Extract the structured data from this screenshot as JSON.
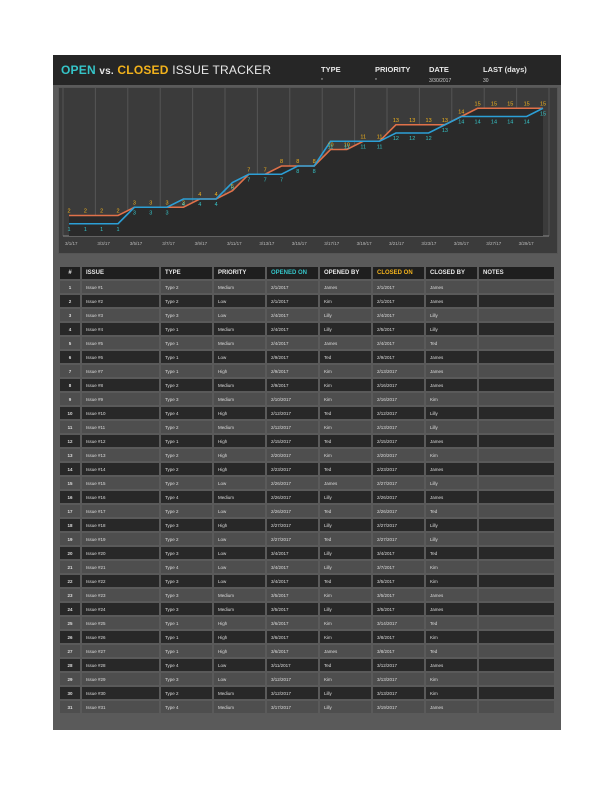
{
  "header": {
    "title_open": "OPEN",
    "title_vs": "vs.",
    "title_closed": "CLOSED",
    "title_rest": "ISSUE TRACKER",
    "filters": [
      {
        "label": "TYPE",
        "value": "*"
      },
      {
        "label": "PRIORITY",
        "value": "*"
      },
      {
        "label": "DATE",
        "value": "3/30/2017"
      },
      {
        "label": "LAST (days)",
        "value": "30"
      }
    ]
  },
  "colors": {
    "open_accent": "#35c4c8",
    "closed_accent": "#f2b21c",
    "open_line": "#e0714a",
    "closed_line": "#2c9fd6"
  },
  "chart_data": {
    "type": "line",
    "title": "",
    "xlabel": "",
    "ylabel": "",
    "grid": true,
    "x_tick_labels": [
      "3/1/17",
      "3/3/17",
      "3/5/17",
      "3/7/17",
      "3/9/17",
      "3/11/17",
      "3/13/17",
      "3/15/17",
      "3/17/17",
      "3/19/17",
      "3/21/17",
      "3/23/17",
      "3/25/17",
      "3/27/17",
      "3/29/17"
    ],
    "series": [
      {
        "name": "Opened",
        "color": "#e0714a",
        "label_color": "#f2b21c",
        "values": [
          2,
          2,
          2,
          2,
          3,
          3,
          3,
          3,
          4,
          4,
          5,
          7,
          7,
          8,
          8,
          8,
          10,
          10,
          11,
          11,
          13,
          13,
          13,
          13,
          14,
          15,
          15,
          15,
          15,
          15
        ]
      },
      {
        "name": "Closed",
        "color": "#2c9fd6",
        "label_color": "#35c4c8",
        "values": [
          1,
          1,
          1,
          1,
          3,
          3,
          3,
          4,
          4,
          4,
          6,
          7,
          7,
          7,
          8,
          8,
          11,
          11,
          11,
          11,
          12,
          12,
          12,
          13,
          14,
          14,
          14,
          14,
          14,
          15
        ]
      }
    ],
    "ylim": [
      0,
      16
    ]
  },
  "table": {
    "headers": [
      "#",
      "ISSUE",
      "TYPE",
      "PRIORITY",
      "OPENED ON",
      "OPENED BY",
      "CLOSED ON",
      "CLOSED BY",
      "NOTES"
    ],
    "rows": [
      [
        "1",
        "Issue #1",
        "Type 2",
        "Medium",
        "2/1/2017",
        "James",
        "2/1/2017",
        "James",
        ""
      ],
      [
        "2",
        "Issue #2",
        "Type 2",
        "Low",
        "2/1/2017",
        "Kim",
        "2/1/2017",
        "James",
        ""
      ],
      [
        "3",
        "Issue #3",
        "Type 3",
        "Low",
        "2/4/2017",
        "Lilly",
        "2/4/2017",
        "Lilly",
        ""
      ],
      [
        "4",
        "Issue #4",
        "Type 1",
        "Medium",
        "2/4/2017",
        "Lilly",
        "2/5/2017",
        "Lilly",
        ""
      ],
      [
        "5",
        "Issue #5",
        "Type 1",
        "Medium",
        "2/4/2017",
        "James",
        "2/4/2017",
        "Ted",
        ""
      ],
      [
        "6",
        "Issue #6",
        "Type 1",
        "Low",
        "2/9/2017",
        "Ted",
        "2/9/2017",
        "James",
        ""
      ],
      [
        "7",
        "Issue #7",
        "Type 1",
        "High",
        "2/9/2017",
        "Kim",
        "2/13/2017",
        "James",
        ""
      ],
      [
        "8",
        "Issue #8",
        "Type 2",
        "Medium",
        "2/9/2017",
        "Kim",
        "2/16/2017",
        "James",
        ""
      ],
      [
        "9",
        "Issue #9",
        "Type 3",
        "Medium",
        "2/10/2017",
        "Kim",
        "2/16/2017",
        "Kim",
        ""
      ],
      [
        "10",
        "Issue #10",
        "Type 4",
        "High",
        "2/12/2017",
        "Ted",
        "2/12/2017",
        "Lilly",
        ""
      ],
      [
        "11",
        "Issue #11",
        "Type 2",
        "Medium",
        "2/12/2017",
        "Kim",
        "2/13/2017",
        "Lilly",
        ""
      ],
      [
        "12",
        "Issue #12",
        "Type 1",
        "High",
        "2/15/2017",
        "Ted",
        "2/15/2017",
        "James",
        ""
      ],
      [
        "13",
        "Issue #13",
        "Type 2",
        "High",
        "2/20/2017",
        "Kim",
        "2/20/2017",
        "Kim",
        ""
      ],
      [
        "14",
        "Issue #14",
        "Type 2",
        "High",
        "2/23/2017",
        "Ted",
        "2/23/2017",
        "James",
        ""
      ],
      [
        "15",
        "Issue #15",
        "Type 2",
        "Low",
        "2/26/2017",
        "James",
        "2/27/2017",
        "Lilly",
        ""
      ],
      [
        "16",
        "Issue #16",
        "Type 4",
        "Medium",
        "2/26/2017",
        "Lilly",
        "2/26/2017",
        "James",
        ""
      ],
      [
        "17",
        "Issue #17",
        "Type 2",
        "Low",
        "2/26/2017",
        "Ted",
        "2/26/2017",
        "Ted",
        ""
      ],
      [
        "18",
        "Issue #18",
        "Type 3",
        "High",
        "2/27/2017",
        "Lilly",
        "2/27/2017",
        "Lilly",
        ""
      ],
      [
        "19",
        "Issue #19",
        "Type 2",
        "Low",
        "2/27/2017",
        "Ted",
        "2/27/2017",
        "Lilly",
        ""
      ],
      [
        "20",
        "Issue #20",
        "Type 3",
        "Low",
        "3/4/2017",
        "Lilly",
        "3/4/2017",
        "Ted",
        ""
      ],
      [
        "21",
        "Issue #21",
        "Type 4",
        "Low",
        "3/4/2017",
        "Lilly",
        "3/7/2017",
        "Kim",
        ""
      ],
      [
        "22",
        "Issue #22",
        "Type 3",
        "Low",
        "3/4/2017",
        "Ted",
        "3/5/2017",
        "Kim",
        ""
      ],
      [
        "23",
        "Issue #23",
        "Type 3",
        "Medium",
        "3/5/2017",
        "Kim",
        "3/5/2017",
        "James",
        ""
      ],
      [
        "24",
        "Issue #24",
        "Type 3",
        "Medium",
        "3/5/2017",
        "Lilly",
        "3/5/2017",
        "James",
        ""
      ],
      [
        "25",
        "Issue #25",
        "Type 1",
        "High",
        "3/6/2017",
        "Kim",
        "3/14/2017",
        "Ted",
        ""
      ],
      [
        "26",
        "Issue #26",
        "Type 1",
        "High",
        "3/6/2017",
        "Kim",
        "3/8/2017",
        "Kim",
        ""
      ],
      [
        "27",
        "Issue #27",
        "Type 1",
        "High",
        "3/6/2017",
        "James",
        "3/8/2017",
        "Ted",
        ""
      ],
      [
        "28",
        "Issue #28",
        "Type 4",
        "Low",
        "3/11/2017",
        "Ted",
        "3/12/2017",
        "James",
        ""
      ],
      [
        "29",
        "Issue #29",
        "Type 3",
        "Low",
        "3/12/2017",
        "Kim",
        "3/13/2017",
        "Kim",
        ""
      ],
      [
        "30",
        "Issue #30",
        "Type 2",
        "Medium",
        "3/12/2017",
        "Lilly",
        "3/13/2017",
        "Kim",
        ""
      ],
      [
        "31",
        "Issue #31",
        "Type 4",
        "Medium",
        "3/17/2017",
        "Lilly",
        "3/19/2017",
        "James",
        ""
      ]
    ]
  }
}
